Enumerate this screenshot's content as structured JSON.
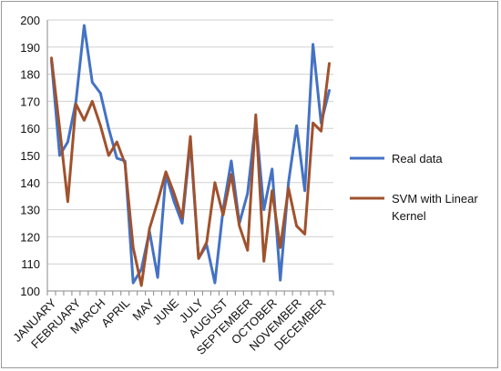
{
  "chart_data": {
    "type": "line",
    "title": "",
    "xlabel": "",
    "ylabel": "",
    "ylim": [
      100,
      200
    ],
    "yticks": [
      100,
      110,
      120,
      130,
      140,
      150,
      160,
      170,
      180,
      190,
      200
    ],
    "category_labels": [
      "JANUARY",
      "FEBRUARY",
      "MARCH",
      "APRIL",
      "MAY",
      "JUNE",
      "JULY",
      "AUGUST",
      "SEPTEMBER",
      "OCTOBER",
      "NOVEMBER",
      "DECEMBER"
    ],
    "grid": "horizontal",
    "legend_position": "right",
    "series": [
      {
        "name": "Real data",
        "color": "#4472C4",
        "values": [
          185,
          150,
          155,
          170,
          198,
          177,
          173,
          160,
          149,
          148,
          103,
          108,
          122,
          105,
          143,
          133,
          125,
          155,
          112,
          117,
          103,
          130,
          148,
          125,
          136,
          163,
          130,
          145,
          104,
          140,
          161,
          137,
          191,
          162,
          174
        ]
      },
      {
        "name": "SVM with Linear\nKernel",
        "color": "#A0522D",
        "values": [
          186,
          160,
          133,
          169,
          163,
          170,
          161,
          150,
          155,
          147,
          116,
          102,
          123,
          133,
          144,
          136,
          127,
          157,
          112,
          118,
          140,
          128,
          143,
          124,
          115,
          165,
          111,
          137,
          116,
          138,
          124,
          121,
          162,
          159,
          184
        ]
      }
    ]
  }
}
